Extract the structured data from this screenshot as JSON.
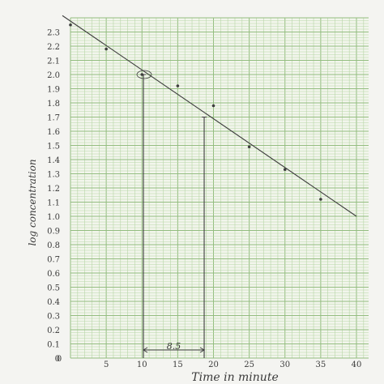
{
  "chart_data": {
    "type": "scatter",
    "title": "",
    "xlabel": "Time in minute",
    "ylabel": "log concentration",
    "xlim": [
      0,
      40
    ],
    "ylim": [
      0,
      2.3
    ],
    "x_ticks": [
      0,
      5,
      10,
      15,
      20,
      25,
      30,
      35,
      40
    ],
    "x_tick_labels": [
      "0",
      "5",
      "10",
      "15",
      "20",
      "25",
      "30",
      "35",
      "40"
    ],
    "y_ticks": [
      0,
      0.1,
      0.2,
      0.3,
      0.4,
      0.5,
      0.6,
      0.7,
      0.8,
      0.9,
      1.0,
      1.1,
      1.2,
      1.3,
      1.4,
      1.5,
      1.6,
      1.7,
      1.8,
      1.9,
      2.0,
      2.1,
      2.2,
      2.3
    ],
    "y_tick_labels": [
      "0",
      "0.1",
      "0.2",
      "0.3",
      "0.4",
      "0.5",
      "0.6",
      "0.7",
      "0.8",
      "0.9",
      "1.0",
      "1.1",
      "1.2",
      "1.3",
      "1.4",
      "1.5",
      "1.6",
      "1.7",
      "1.8",
      "1.9",
      "2.0",
      "2.1",
      "2.2",
      "2.3"
    ],
    "grid": true,
    "series": [
      {
        "points": [
          {
            "x": 0,
            "y": 2.35
          },
          {
            "x": 5,
            "y": 2.18
          },
          {
            "x": 10,
            "y": 2.0
          },
          {
            "x": 15,
            "y": 1.92
          },
          {
            "x": 20,
            "y": 1.78
          },
          {
            "x": 25,
            "y": 1.49
          },
          {
            "x": 30,
            "y": 1.33
          },
          {
            "x": 35,
            "y": 1.12
          }
        ]
      }
    ],
    "trend_line": {
      "x": [
        0,
        40
      ],
      "y": [
        2.37,
        1.0
      ]
    },
    "annotations": {
      "half_life_label": "8.5",
      "drop_lines": [
        {
          "x": 10.2,
          "y": 2.0
        },
        {
          "x": 18.7,
          "y": 1.7
        }
      ],
      "span": [
        10.2,
        18.7
      ]
    },
    "colors": {
      "grid": "#b7d6a6",
      "grid_major": "#93bd7f",
      "ink": "#3d3d3d",
      "paper": "#f4f4f1"
    }
  }
}
